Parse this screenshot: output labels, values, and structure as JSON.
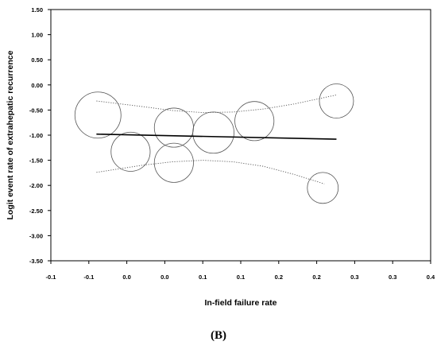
{
  "panel_label": "(B)",
  "chart_data": {
    "type": "scatter",
    "xlabel": "In-field failure rate",
    "ylabel": "Logit event rate of extrahepatic  recurrence",
    "xlim": [
      -0.1,
      0.4
    ],
    "ylim": [
      -3.5,
      1.5
    ],
    "x_tick_labels": [
      "-0.1",
      "-0.1",
      "0.0",
      "0.0",
      "0.1",
      "0.1",
      "0.2",
      "0.2",
      "0.3",
      "0.3",
      "0.4"
    ],
    "y_tick_labels": [
      "1.50",
      "1.00",
      "0.50",
      "0.00",
      "-0.50",
      "-1.00",
      "-1.50",
      "-2.00",
      "-2.50",
      "-3.00",
      "-3.50"
    ],
    "grid": false,
    "points": [
      {
        "x": -0.038,
        "y": -0.6,
        "weight": 1.0
      },
      {
        "x": 0.005,
        "y": -1.33,
        "weight": 0.72
      },
      {
        "x": 0.062,
        "y": -0.85,
        "weight": 0.72
      },
      {
        "x": 0.062,
        "y": -1.55,
        "weight": 0.72
      },
      {
        "x": 0.114,
        "y": -0.95,
        "weight": 0.8
      },
      {
        "x": 0.168,
        "y": -0.72,
        "weight": 0.72
      },
      {
        "x": 0.258,
        "y": -2.05,
        "weight": 0.45
      },
      {
        "x": 0.276,
        "y": -0.32,
        "weight": 0.55
      }
    ],
    "regression": {
      "x": [
        -0.04,
        0.276
      ],
      "y": [
        -0.98,
        -1.08
      ]
    },
    "ci_upper": {
      "x": [
        -0.04,
        0.02,
        0.06,
        0.1,
        0.14,
        0.18,
        0.22,
        0.276
      ],
      "y": [
        -0.32,
        -0.43,
        -0.51,
        -0.55,
        -0.54,
        -0.48,
        -0.38,
        -0.2
      ]
    },
    "ci_lower": {
      "x": [
        -0.04,
        0.02,
        0.06,
        0.1,
        0.14,
        0.18,
        0.22,
        0.26
      ],
      "y": [
        -1.74,
        -1.6,
        -1.53,
        -1.5,
        -1.53,
        -1.62,
        -1.78,
        -1.97
      ]
    }
  }
}
